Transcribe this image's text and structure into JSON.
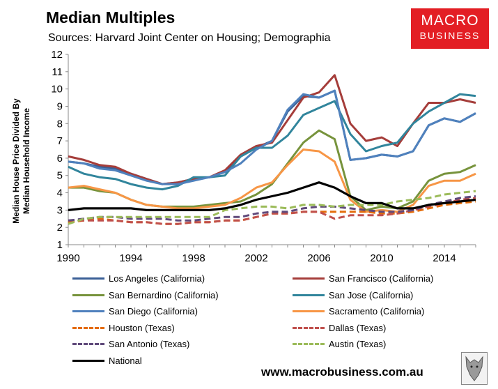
{
  "header": {
    "title": "Median Multiples",
    "subtitle": "Sources: Harvard Joint Center on Housing; Demographia"
  },
  "logo": {
    "line1": "MACRO",
    "line2": "BUSINESS"
  },
  "footer": {
    "url": "www.macrobusiness.com.au"
  },
  "chart_data": {
    "type": "line",
    "title": "Median Multiples",
    "ylabel": "Median House Price Divided By Median Household Income",
    "ylabel_lines": [
      "Median House Price Divided By",
      "Median Household Income"
    ],
    "xlabel": "",
    "ylim": [
      1,
      12
    ],
    "yticks": [
      1,
      2,
      3,
      4,
      5,
      6,
      7,
      8,
      9,
      10,
      11,
      12
    ],
    "xlim": [
      1990,
      2016
    ],
    "xticks": [
      1990,
      1994,
      1998,
      2002,
      2006,
      2010,
      2014
    ],
    "x": [
      1990,
      1991,
      1992,
      1993,
      1994,
      1995,
      1996,
      1997,
      1998,
      1999,
      2000,
      2001,
      2002,
      2003,
      2004,
      2005,
      2006,
      2007,
      2008,
      2009,
      2010,
      2011,
      2012,
      2013,
      2014,
      2015,
      2016
    ],
    "legend_position": "bottom",
    "series": [
      {
        "name": "Los Angeles (California)",
        "color": "#3a5f96",
        "dash": "solid",
        "values": [
          5.8,
          5.7,
          5.5,
          5.4,
          5.1,
          4.8,
          4.5,
          4.6,
          4.8,
          4.9,
          5.2,
          6.1,
          6.6,
          7.0,
          8.7,
          9.6,
          9.5,
          9.9,
          5.9,
          6.0,
          6.2,
          6.1,
          6.4,
          7.9,
          8.3,
          8.1,
          8.6
        ]
      },
      {
        "name": "San Francisco (California)",
        "color": "#a53d3a",
        "dash": "solid",
        "values": [
          6.1,
          5.9,
          5.6,
          5.5,
          5.1,
          4.8,
          4.5,
          4.6,
          4.8,
          4.9,
          5.3,
          6.2,
          6.7,
          6.9,
          8.2,
          9.5,
          9.8,
          10.8,
          8.0,
          7.0,
          7.2,
          6.7,
          8.0,
          9.2,
          9.2,
          9.4,
          9.2
        ]
      },
      {
        "name": "San Bernardino (California)",
        "color": "#77933c",
        "dash": "solid",
        "values": [
          4.3,
          4.3,
          4.1,
          4.0,
          3.6,
          3.3,
          3.2,
          3.2,
          3.2,
          3.3,
          3.4,
          3.5,
          3.9,
          4.5,
          5.7,
          6.9,
          7.6,
          7.1,
          3.8,
          3.0,
          3.2,
          3.1,
          3.5,
          4.7,
          5.1,
          5.2,
          5.6
        ]
      },
      {
        "name": "San Jose (California)",
        "color": "#31859c",
        "dash": "solid",
        "values": [
          5.5,
          5.1,
          4.9,
          4.8,
          4.5,
          4.3,
          4.2,
          4.4,
          4.9,
          4.9,
          5.0,
          6.1,
          6.6,
          6.6,
          7.3,
          8.5,
          8.9,
          9.3,
          7.4,
          6.4,
          6.7,
          6.9,
          8.0,
          8.7,
          9.2,
          9.7,
          9.6
        ]
      },
      {
        "name": "San Diego (California)",
        "color": "#4f81bd",
        "dash": "solid",
        "values": [
          5.8,
          5.7,
          5.4,
          5.3,
          5.0,
          4.7,
          4.5,
          4.5,
          4.7,
          4.9,
          5.2,
          5.7,
          6.5,
          7.0,
          8.8,
          9.7,
          9.5,
          9.9,
          5.9,
          6.0,
          6.2,
          6.1,
          6.4,
          7.9,
          8.3,
          8.1,
          8.6
        ]
      },
      {
        "name": "Sacramento (California)",
        "color": "#f79646",
        "dash": "solid",
        "values": [
          4.3,
          4.4,
          4.2,
          4.0,
          3.6,
          3.3,
          3.2,
          3.1,
          3.1,
          3.2,
          3.3,
          3.7,
          4.3,
          4.6,
          5.6,
          6.5,
          6.4,
          5.8,
          3.6,
          2.9,
          3.0,
          2.9,
          3.3,
          4.4,
          4.7,
          4.7,
          5.1
        ]
      },
      {
        "name": "Houston (Texas)",
        "color": "#e46c0a",
        "dash": "dash",
        "values": [
          2.3,
          2.4,
          2.5,
          2.4,
          2.3,
          2.3,
          2.2,
          2.2,
          2.3,
          2.3,
          2.4,
          2.4,
          2.6,
          2.8,
          2.8,
          2.9,
          2.9,
          2.9,
          2.9,
          2.9,
          2.8,
          2.8,
          2.9,
          3.1,
          3.3,
          3.4,
          3.5
        ]
      },
      {
        "name": "Dallas (Texas)",
        "color": "#c0504d",
        "dash": "dash",
        "values": [
          2.4,
          2.4,
          2.4,
          2.4,
          2.3,
          2.3,
          2.2,
          2.2,
          2.3,
          2.3,
          2.4,
          2.4,
          2.6,
          2.8,
          2.8,
          2.9,
          2.9,
          2.5,
          2.7,
          2.7,
          2.7,
          2.8,
          3.0,
          3.2,
          3.4,
          3.6,
          3.7
        ]
      },
      {
        "name": "San Antonio (Texas)",
        "color": "#604a7b",
        "dash": "dash",
        "values": [
          2.4,
          2.5,
          2.6,
          2.6,
          2.5,
          2.5,
          2.5,
          2.4,
          2.4,
          2.5,
          2.6,
          2.6,
          2.8,
          2.9,
          2.9,
          3.1,
          3.2,
          3.2,
          3.1,
          3.0,
          2.9,
          2.9,
          3.0,
          3.3,
          3.5,
          3.7,
          3.8
        ]
      },
      {
        "name": "Austin (Texas)",
        "color": "#9bbb59",
        "dash": "dash",
        "values": [
          2.2,
          2.5,
          2.6,
          2.6,
          2.6,
          2.6,
          2.6,
          2.6,
          2.6,
          2.6,
          3.0,
          3.1,
          3.2,
          3.2,
          3.1,
          3.3,
          3.3,
          3.2,
          3.3,
          3.3,
          3.3,
          3.5,
          3.6,
          3.7,
          3.9,
          4.0,
          4.1
        ]
      },
      {
        "name": "National",
        "color": "#000000",
        "dash": "solid",
        "values": [
          3.0,
          3.1,
          3.1,
          3.1,
          3.1,
          3.0,
          3.0,
          3.0,
          3.0,
          3.0,
          3.1,
          3.3,
          3.6,
          3.8,
          4.0,
          4.3,
          4.6,
          4.3,
          3.8,
          3.4,
          3.4,
          3.1,
          3.1,
          3.3,
          3.4,
          3.5,
          3.6
        ]
      }
    ]
  }
}
